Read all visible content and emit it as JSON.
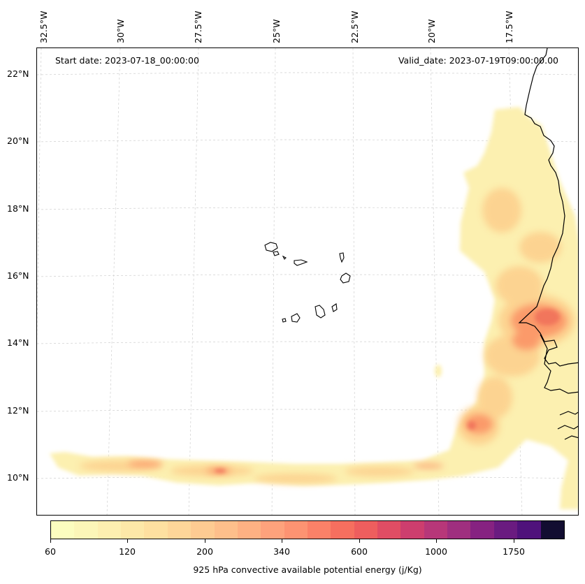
{
  "annotations": {
    "start": "Start date: 2023-07-18_00:00:00",
    "valid": "Valid_date: 2023-07-19T09:00:00.00"
  },
  "lon_labels": [
    "32.5°W",
    "30°W",
    "27.5°W",
    "25°W",
    "22.5°W",
    "20°W",
    "17.5°W"
  ],
  "lat_labels": [
    "22°N",
    "20°N",
    "18°N",
    "16°N",
    "14°N",
    "12°N",
    "10°N"
  ],
  "colorbar": {
    "title": "925 hPa convective available potential energy (j/Kg)",
    "tick_labels": [
      "60",
      "120",
      "200",
      "340",
      "600",
      "1000",
      "1750"
    ],
    "colors": [
      "#fcfdbf",
      "#fcf6b8",
      "#fdefb0",
      "#fde8a8",
      "#fee0a0",
      "#fed699",
      "#fecb92",
      "#febf8b",
      "#feb183",
      "#fea27c",
      "#fd9372",
      "#fb8168",
      "#f66f5f",
      "#ee5e5e",
      "#e04d64",
      "#cd3e6e",
      "#b73779",
      "#9f2f7f",
      "#862281",
      "#6a1b80",
      "#4f127b",
      "#120d31"
    ]
  },
  "map": {
    "region": "Cape Verde / West African coast",
    "grid": true,
    "field_colors": {
      "low": "#fcf0b0",
      "mid": "#fdd08e",
      "high": "#fb9466",
      "peak": "#f0705a"
    }
  }
}
